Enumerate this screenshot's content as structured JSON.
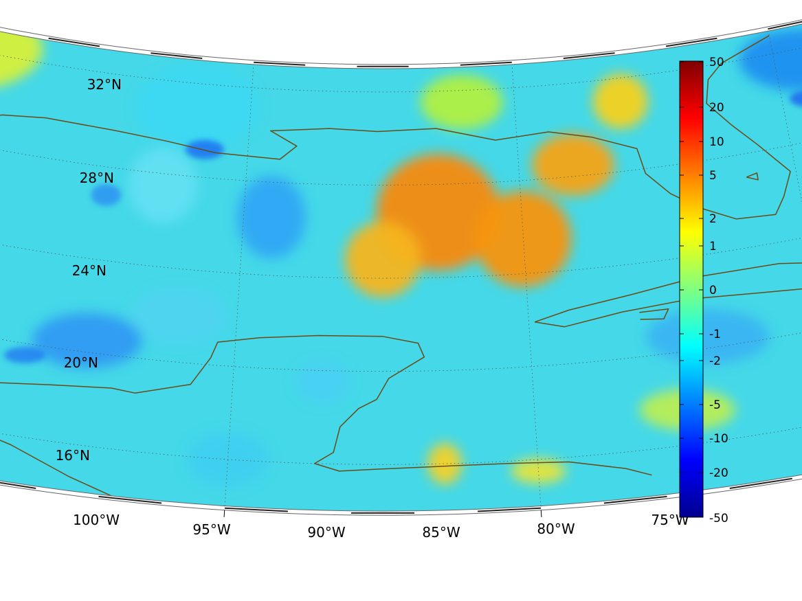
{
  "map": {
    "projection": "conic",
    "lon_range": [
      -100,
      -75
    ],
    "lat_range": [
      14,
      33
    ],
    "lat_ticks": [
      "32°N",
      "28°N",
      "24°N",
      "20°N",
      "16°N"
    ],
    "lon_ticks": [
      "100°W",
      "95°W",
      "90°W",
      "85°W",
      "80°W",
      "75°W"
    ],
    "coastline_color": "#6b4a16",
    "gridline_style": "dotted"
  },
  "colorbar": {
    "colormap": "jet",
    "tick_labels": [
      "50",
      "20",
      "10",
      "5",
      "2",
      "1",
      "0",
      "-1",
      "-2",
      "-5",
      "-10",
      "-20",
      "-50"
    ],
    "range": [
      -50,
      50
    ]
  }
}
